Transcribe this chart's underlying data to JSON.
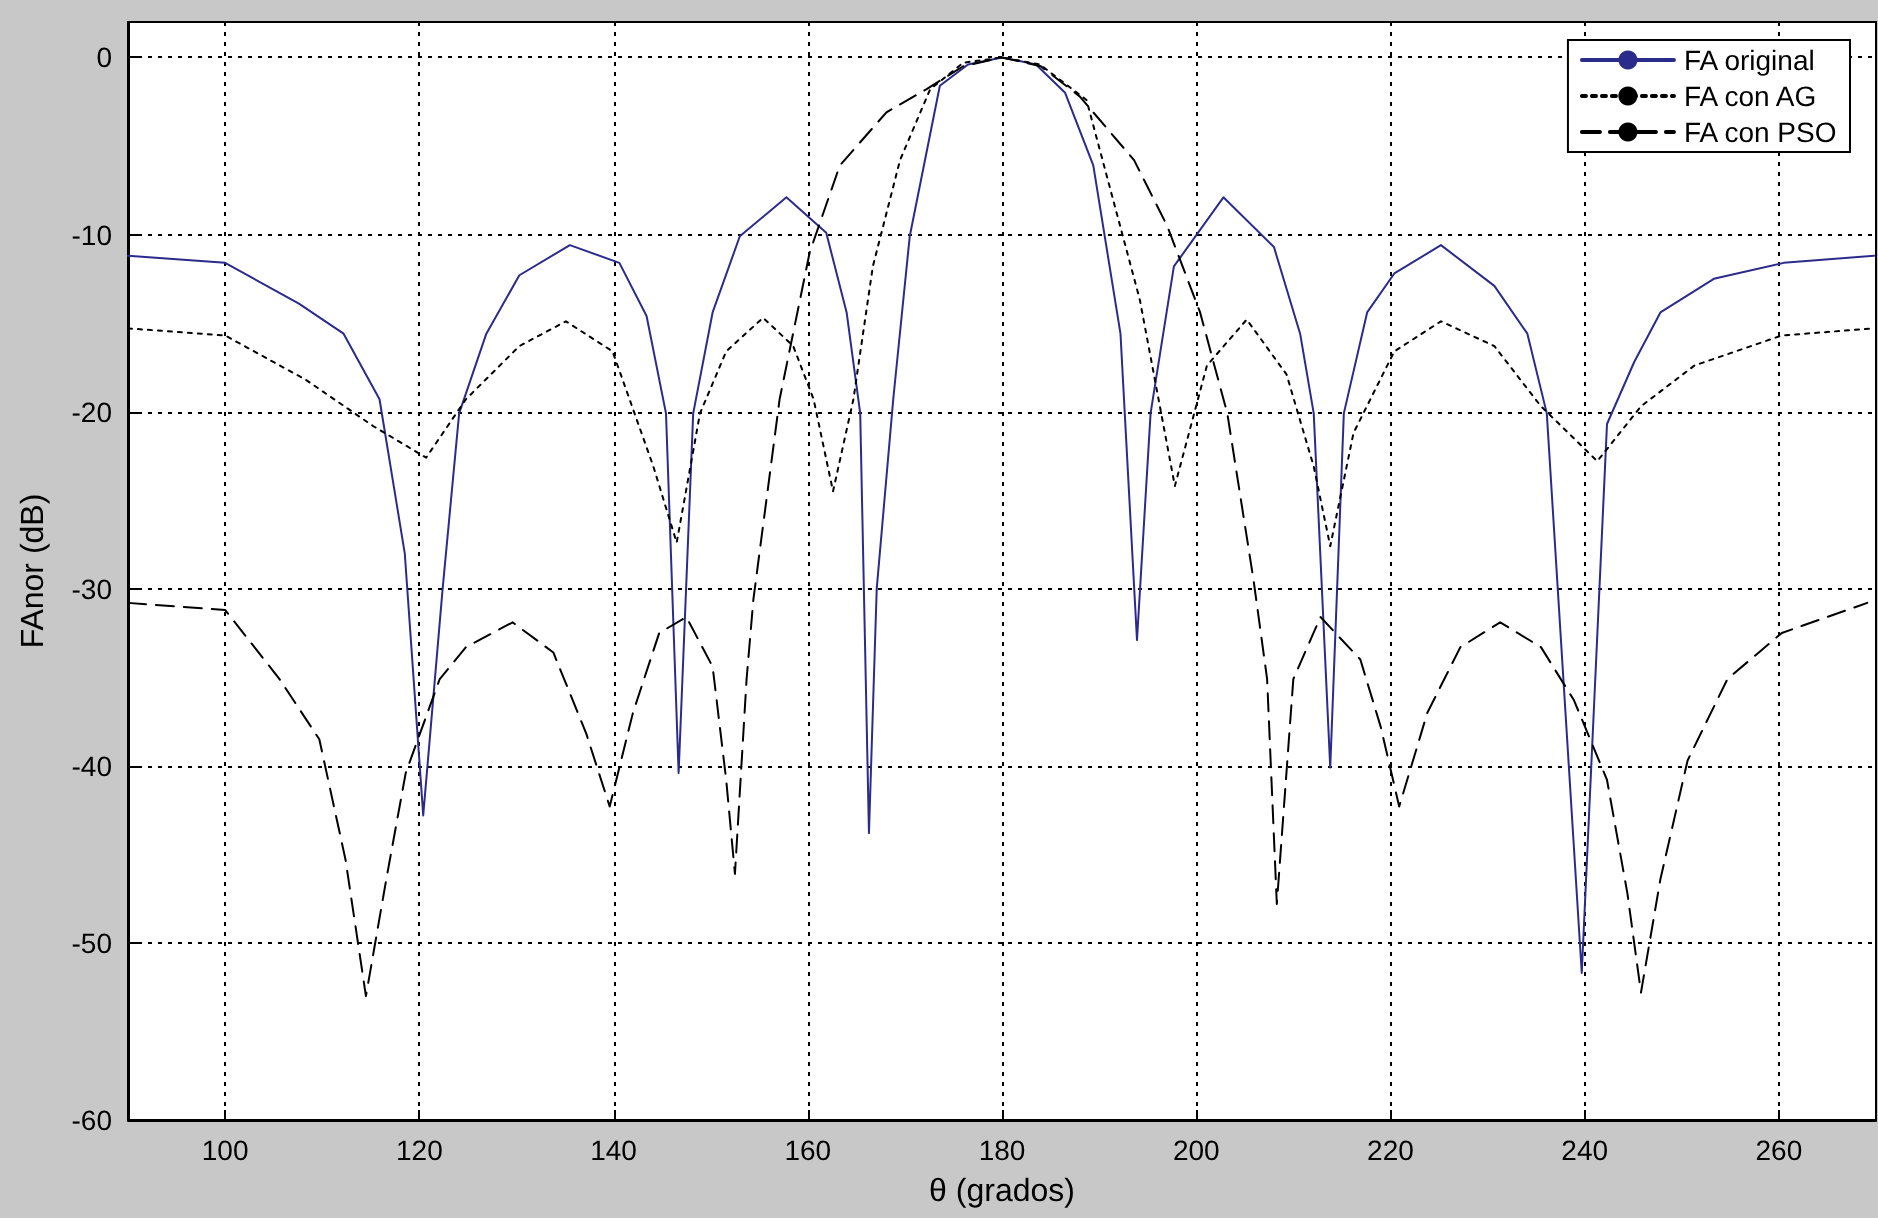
{
  "chart_data": {
    "type": "line",
    "xlabel": "θ (grados)",
    "ylabel": "FAnor (dB)",
    "xlim": [
      90,
      270
    ],
    "xticks": [
      100,
      120,
      140,
      160,
      180,
      200,
      220,
      240,
      260
    ],
    "ylim": [
      -60,
      2
    ],
    "yticks": [
      -60,
      -50,
      -40,
      -30,
      -20,
      -10,
      0
    ],
    "grid": true,
    "legend": "top right",
    "marker": "none",
    "series": [
      {
        "name": "FA original",
        "color": "#2b2b8c",
        "line_style": "solid",
        "x": [
          90,
          100,
          107.6,
          112.2,
          115.9,
          118.5,
          120.4,
          122.4,
          124.1,
          126.9,
          130.3,
          135.5,
          140.6,
          143.4,
          145.4,
          146.7,
          148.2,
          150.2,
          153,
          157.8,
          161.9,
          164,
          165.4,
          166.3,
          167.1,
          168.8,
          170.5,
          173.6,
          176.5,
          180,
          183.5,
          186.5,
          189.4,
          192.2,
          193.9,
          195.3,
          197.7,
          202.8,
          208,
          210.7,
          212.1,
          213.8,
          215.2,
          217.6,
          220.4,
          225.2,
          230.7,
          234.1,
          236.1,
          239.7,
          242.3,
          245.1,
          247.8,
          253.3,
          260.5,
          269.8
        ],
        "values": [
          -11.2,
          -11.6,
          -13.9,
          -15.6,
          -19.3,
          -28,
          -42.8,
          -30,
          -20.1,
          -15.6,
          -12.3,
          -10.6,
          -11.6,
          -14.6,
          -20.1,
          -40.4,
          -20.1,
          -14.4,
          -10.1,
          -7.9,
          -9.9,
          -14.4,
          -20.1,
          -43.8,
          -30,
          -19.3,
          -10.1,
          -1.6,
          -0.4,
          0,
          -0.4,
          -2,
          -6.1,
          -15.6,
          -32.9,
          -20.1,
          -11.8,
          -7.9,
          -10.7,
          -15.6,
          -20.1,
          -40.1,
          -20.1,
          -14.4,
          -12.2,
          -10.6,
          -12.9,
          -15.6,
          -20.1,
          -51.7,
          -20.7,
          -17.2,
          -14.4,
          -12.5,
          -11.6,
          -11.2
        ]
      },
      {
        "name": "FA con AG",
        "color": "#000000",
        "line_style": "dotted",
        "x": [
          90,
          100,
          108.3,
          115.2,
          120.7,
          124.8,
          130.3,
          135.1,
          139.9,
          144.1,
          146.5,
          148.9,
          151.6,
          155.4,
          158.5,
          160.6,
          162.6,
          164.7,
          166.7,
          169.5,
          172.6,
          176,
          180,
          183.9,
          188.7,
          194.2,
          197.8,
          201.1,
          205.2,
          209.3,
          212.1,
          213.8,
          216.2,
          220.4,
          225.2,
          230.7,
          235.5,
          241.3,
          245.8,
          251.3,
          260.3,
          269.8
        ],
        "values": [
          -15.3,
          -15.7,
          -18.2,
          -20.8,
          -22.6,
          -19.3,
          -16.3,
          -14.9,
          -16.6,
          -23.1,
          -27.4,
          -20.1,
          -16.6,
          -14.7,
          -16.3,
          -19.3,
          -24.5,
          -19.3,
          -11.8,
          -5.8,
          -1.8,
          -0.3,
          0,
          -0.4,
          -2.4,
          -13.7,
          -24.2,
          -17.4,
          -14.8,
          -17.9,
          -23.1,
          -27.6,
          -21.2,
          -16.6,
          -14.9,
          -16.3,
          -19.7,
          -22.8,
          -19.7,
          -17.4,
          -15.7,
          -15.3
        ]
      },
      {
        "name": "FA con PSO",
        "color": "#000000",
        "line_style": "dashed",
        "x": [
          90,
          100,
          105.6,
          109.7,
          112.4,
          114.5,
          116.6,
          118.6,
          122.1,
          124.8,
          129.6,
          133.8,
          137.2,
          139.6,
          142,
          144.7,
          147.5,
          150.2,
          151.6,
          152.5,
          153.7,
          154.4,
          157.1,
          160.2,
          163.3,
          168.1,
          172.2,
          176,
          180,
          184,
          188,
          193.6,
          197,
          200.4,
          203.2,
          205.9,
          207.3,
          208.3,
          210,
          212.8,
          216.9,
          219,
          220.9,
          223.8,
          227.2,
          231.3,
          235.5,
          238.9,
          242.3,
          244.4,
          245.8,
          247.8,
          250.6,
          254.7,
          260.3,
          269.1
        ],
        "values": [
          -30.8,
          -31.2,
          -35.1,
          -38.5,
          -45.3,
          -53,
          -46.4,
          -40.4,
          -35.1,
          -33.3,
          -31.9,
          -33.6,
          -38.2,
          -42.3,
          -37,
          -32.5,
          -31.6,
          -34.4,
          -40.8,
          -46.1,
          -35.1,
          -30.6,
          -19.3,
          -11,
          -6.1,
          -3.1,
          -1.8,
          -0.5,
          0,
          -0.5,
          -2.2,
          -5.8,
          -9.5,
          -14.4,
          -20.1,
          -29.5,
          -35.1,
          -47.8,
          -35.1,
          -31.6,
          -34,
          -37.8,
          -42.3,
          -37,
          -33.3,
          -31.9,
          -33.3,
          -36.3,
          -40.8,
          -47.2,
          -52.8,
          -46.4,
          -39.7,
          -35.1,
          -32.5,
          -30.8
        ]
      }
    ]
  }
}
